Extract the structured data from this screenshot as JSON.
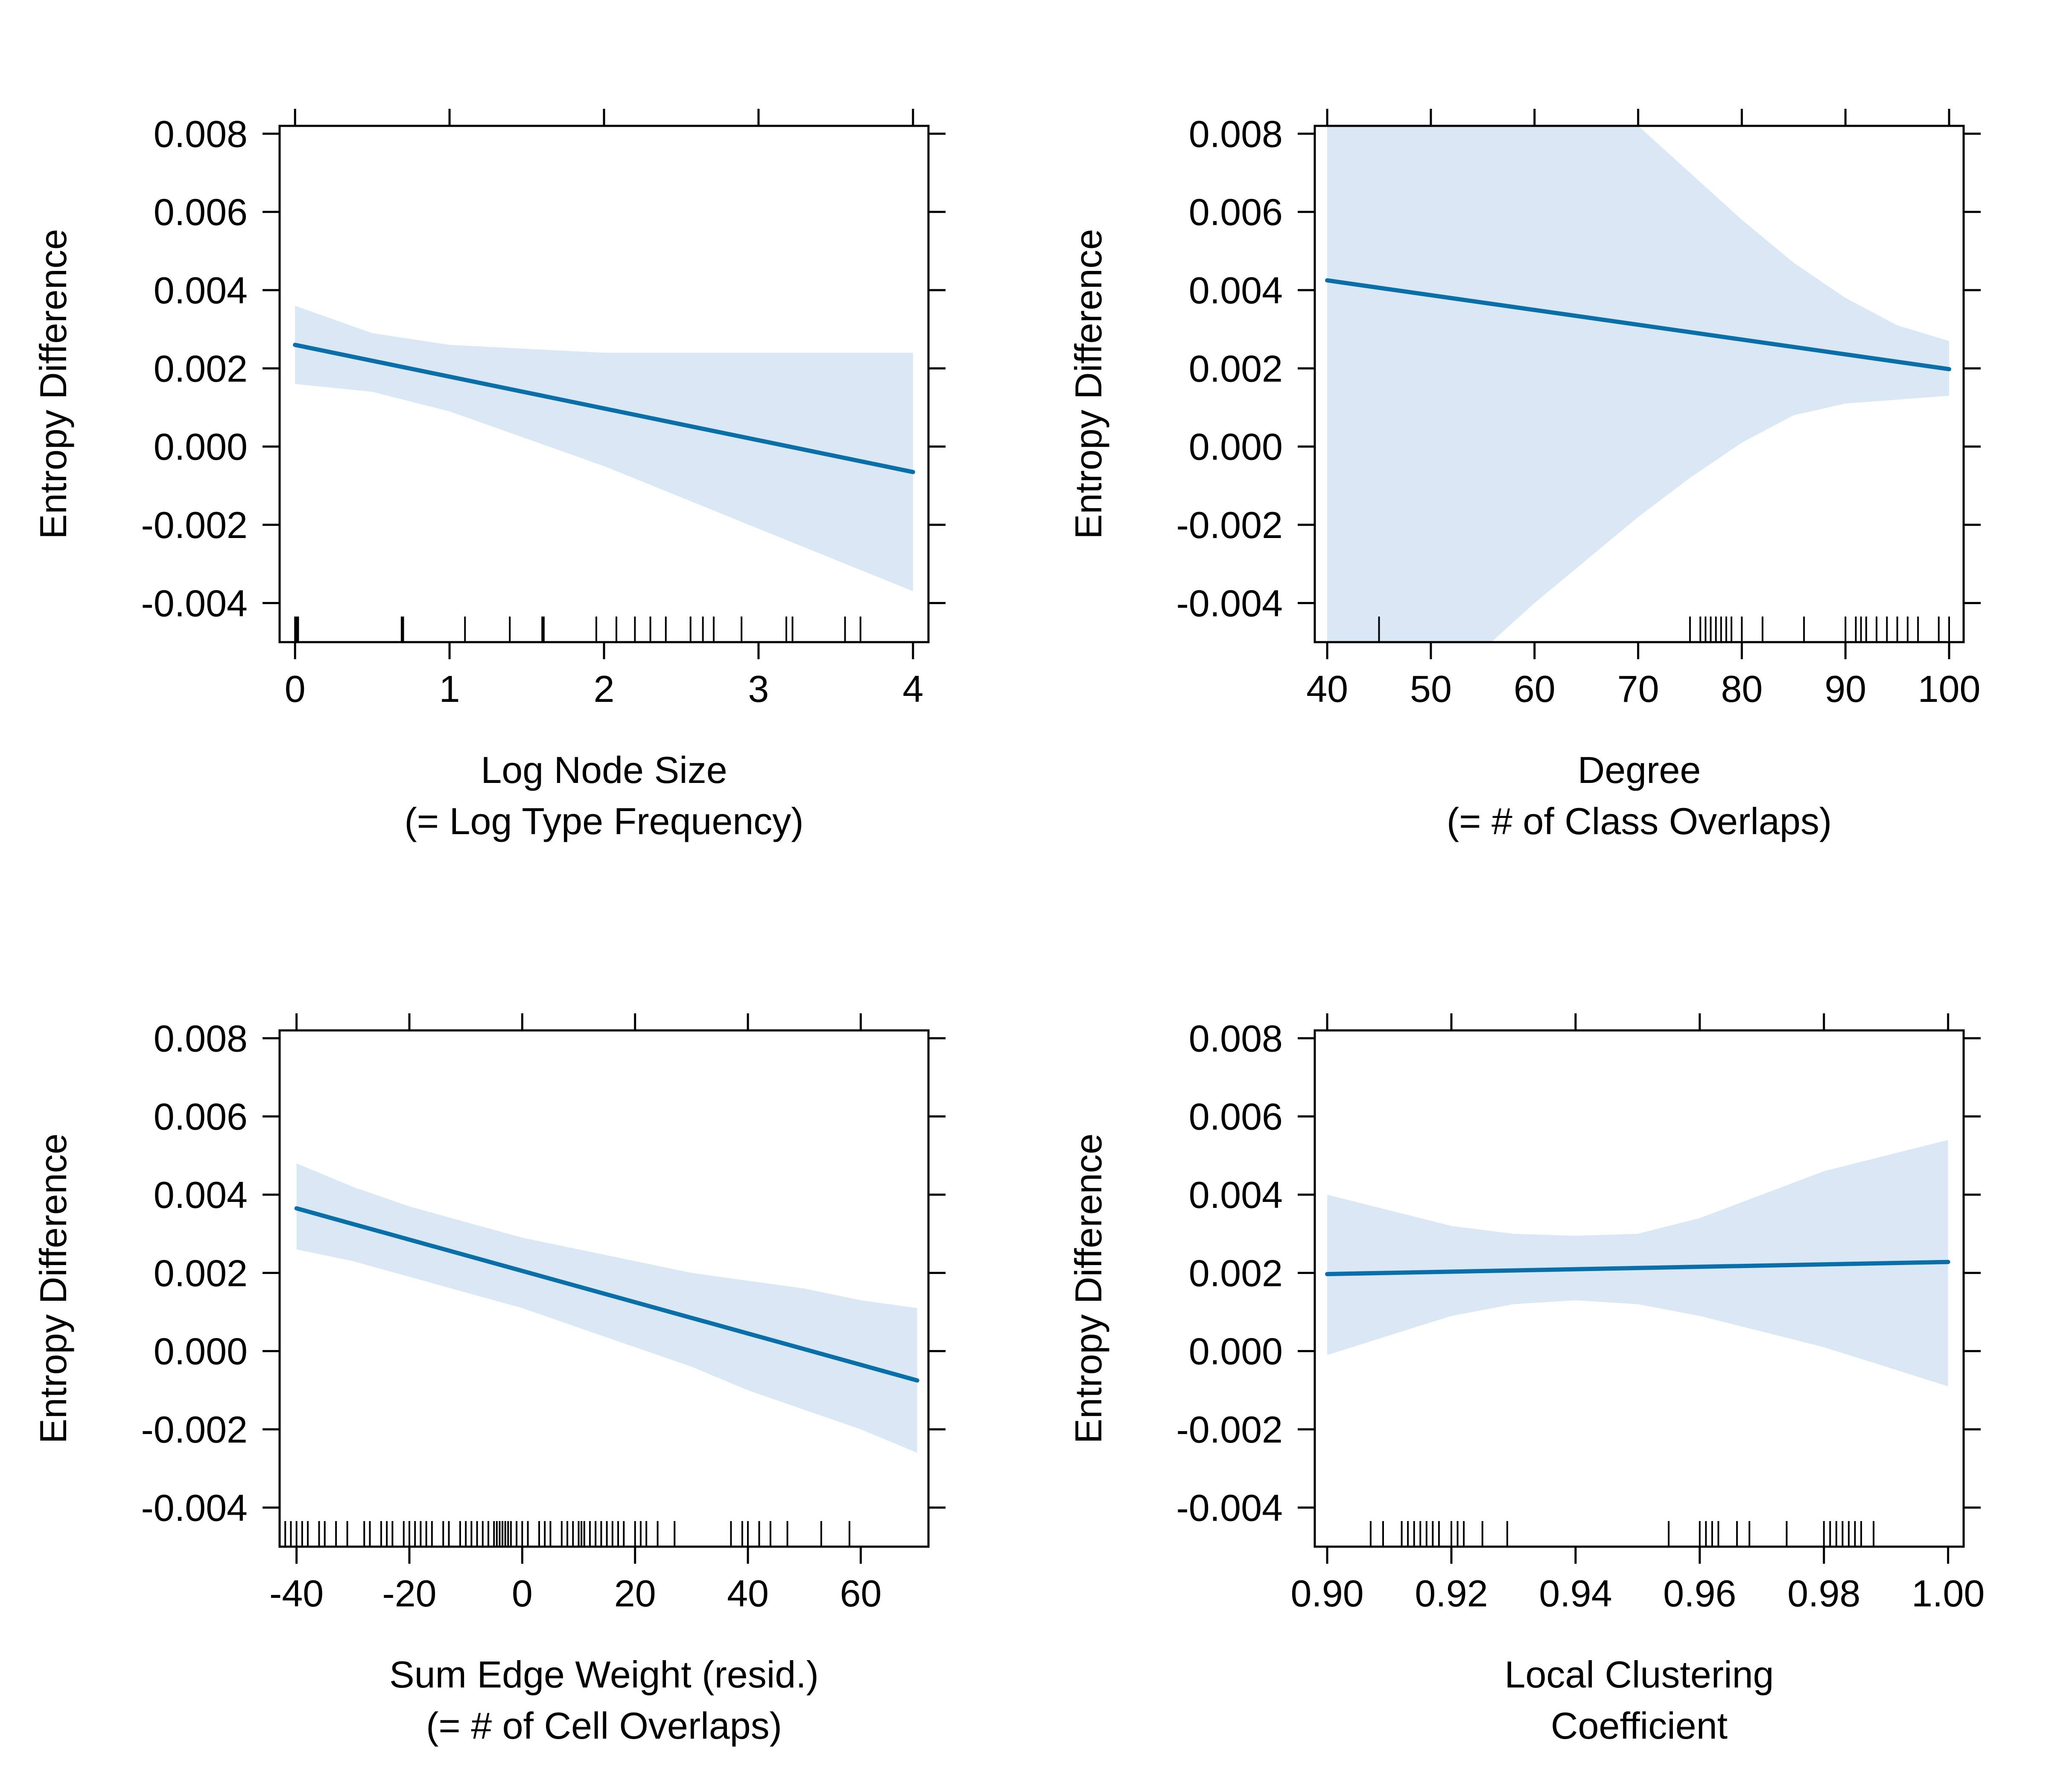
{
  "figure": {
    "band_color": "#d9e8f4",
    "line_color": "#0a6ea8",
    "axis_color": "#000000"
  },
  "chart_data": [
    {
      "type": "line",
      "ylabel": "Entropy Difference",
      "xlabel": [
        "Log Node Size",
        "(= Log Type Frequency)"
      ],
      "xlim": [
        -0.1,
        4.1
      ],
      "ylim": [
        -0.005,
        0.0082
      ],
      "xticks": [
        0,
        1,
        2,
        3,
        4
      ],
      "xtick_labels": [
        "0",
        "1",
        "2",
        "3",
        "4"
      ],
      "yticks": [
        -0.004,
        -0.002,
        0.0,
        0.002,
        0.004,
        0.006,
        0.008
      ],
      "ytick_labels": [
        "-0.004",
        "-0.002",
        "0.000",
        "0.002",
        "0.004",
        "0.006",
        "0.008"
      ],
      "grid": false,
      "series": [
        {
          "x": [
            0,
            4
          ],
          "y": [
            0.0026,
            -0.00065
          ],
          "band": {
            "x": [
              0,
              0.5,
              1,
              1.5,
              2,
              2.5,
              3,
              3.5,
              4
            ],
            "lower": [
              0.0016,
              0.0014,
              0.0009,
              0.0002,
              -0.0005,
              -0.0013,
              -0.0021,
              -0.0029,
              -0.0037
            ],
            "upper": [
              0.0036,
              0.0029,
              0.0026,
              0.0025,
              0.0024,
              0.0024,
              0.0024,
              0.0024,
              0.0024
            ]
          }
        }
      ],
      "rug": [
        0,
        0.01,
        0.02,
        0.69,
        0.7,
        1.1,
        1.39,
        1.6,
        1.61,
        1.95,
        2.08,
        2.2,
        2.3,
        2.4,
        2.56,
        2.64,
        2.71,
        2.89,
        3.18,
        3.22,
        3.56,
        3.66
      ]
    },
    {
      "type": "line",
      "ylabel": "Entropy Difference",
      "xlabel": [
        "Degree",
        "(= # of Class Overlaps)"
      ],
      "xlim": [
        38.8,
        101.4
      ],
      "ylim": [
        -0.005,
        0.0082
      ],
      "xticks": [
        40,
        50,
        60,
        70,
        80,
        90,
        100
      ],
      "xtick_labels": [
        "40",
        "50",
        "60",
        "70",
        "80",
        "90",
        "100"
      ],
      "yticks": [
        -0.004,
        -0.002,
        0.0,
        0.002,
        0.004,
        0.006,
        0.008
      ],
      "ytick_labels": [
        "-0.004",
        "-0.002",
        "0.000",
        "0.002",
        "0.004",
        "0.006",
        "0.008"
      ],
      "grid": false,
      "series": [
        {
          "x": [
            40,
            100
          ],
          "y": [
            0.00425,
            0.00198
          ],
          "band": {
            "x": [
              40,
              45,
              50,
              55,
              60,
              65,
              70,
              75,
              80,
              85,
              90,
              95,
              100
            ],
            "lower": [
              -0.0105,
              -0.0085,
              -0.0065,
              -0.0052,
              -0.004,
              -0.0029,
              -0.0018,
              -0.0008,
              0.0001,
              0.0008,
              0.0011,
              0.0012,
              0.0013
            ],
            "upper": [
              0.019,
              0.017,
              0.0145,
              0.0125,
              0.011,
              0.0095,
              0.0082,
              0.007,
              0.0058,
              0.0047,
              0.0038,
              0.0031,
              0.0027
            ]
          }
        }
      ],
      "rug": [
        45,
        75,
        76,
        76.5,
        77,
        77.5,
        78,
        78.5,
        79,
        80,
        82,
        86,
        90,
        91,
        91.5,
        92,
        93,
        94,
        95,
        96,
        97,
        99,
        100
      ]
    },
    {
      "type": "line",
      "ylabel": "Entropy Difference",
      "xlabel": [
        "Sum Edge Weight (resid.)",
        "(= # of Cell Overlaps)"
      ],
      "xlim": [
        -43,
        72
      ],
      "ylim": [
        -0.005,
        0.0082
      ],
      "xticks": [
        -40,
        -20,
        0,
        20,
        40,
        60
      ],
      "xtick_labels": [
        "-40",
        "-20",
        "0",
        "20",
        "40",
        "60"
      ],
      "yticks": [
        -0.004,
        -0.002,
        0.0,
        0.002,
        0.004,
        0.006,
        0.008
      ],
      "ytick_labels": [
        "-0.004",
        "-0.002",
        "0.000",
        "0.002",
        "0.004",
        "0.006",
        "0.008"
      ],
      "grid": false,
      "series": [
        {
          "x": [
            -40,
            70
          ],
          "y": [
            0.00365,
            -0.00075
          ],
          "band": {
            "x": [
              -40,
              -30,
              -20,
              -10,
              0,
              10,
              20,
              30,
              40,
              50,
              60,
              70
            ],
            "lower": [
              0.0026,
              0.0023,
              0.0019,
              0.0015,
              0.0011,
              0.0006,
              0.0001,
              -0.0004,
              -0.001,
              -0.0015,
              -0.002,
              -0.0026
            ],
            "upper": [
              0.0048,
              0.0042,
              0.0037,
              0.0033,
              0.0029,
              0.0026,
              0.0023,
              0.002,
              0.0018,
              0.0016,
              0.0013,
              0.0011
            ]
          }
        }
      ],
      "rug": [
        -42,
        -41,
        -40,
        -39,
        -38,
        -36,
        -35,
        -33,
        -31,
        -28,
        -27,
        -25,
        -24,
        -23,
        -21,
        -20,
        -19,
        -18,
        -17,
        -16,
        -14,
        -13,
        -11,
        -10,
        -9,
        -8,
        -7,
        -6,
        -5,
        -4.5,
        -4,
        -3.5,
        -3,
        -2.5,
        -2,
        -1,
        0,
        1,
        3,
        4,
        5,
        7,
        8,
        9,
        10,
        10.5,
        11,
        12,
        13,
        14,
        15,
        16,
        17,
        18,
        20,
        21,
        22,
        24,
        27,
        37,
        39,
        40,
        42,
        44,
        47,
        53,
        58
      ]
    },
    {
      "type": "line",
      "ylabel": "Entropy Difference",
      "xlabel": [
        "Local Clustering",
        "Coefficient"
      ],
      "xlim": [
        0.898,
        1.0025
      ],
      "ylim": [
        -0.005,
        0.0082
      ],
      "xticks": [
        0.9,
        0.92,
        0.94,
        0.96,
        0.98,
        1.0
      ],
      "xtick_labels": [
        "0.90",
        "0.92",
        "0.94",
        "0.96",
        "0.98",
        "1.00"
      ],
      "yticks": [
        -0.004,
        -0.002,
        0.0,
        0.002,
        0.004,
        0.006,
        0.008
      ],
      "ytick_labels": [
        "-0.004",
        "-0.002",
        "0.000",
        "0.002",
        "0.004",
        "0.006",
        "0.008"
      ],
      "grid": false,
      "series": [
        {
          "x": [
            0.9,
            1.0
          ],
          "y": [
            0.00197,
            0.00228
          ],
          "band": {
            "x": [
              0.9,
              0.91,
              0.92,
              0.93,
              0.94,
              0.95,
              0.96,
              0.97,
              0.98,
              0.99,
              1.0
            ],
            "lower": [
              -0.0001,
              0.0004,
              0.0009,
              0.0012,
              0.0013,
              0.0012,
              0.0009,
              0.0005,
              0.0001,
              -0.0004,
              -0.0009
            ],
            "upper": [
              0.004,
              0.0036,
              0.0032,
              0.003,
              0.00295,
              0.003,
              0.0034,
              0.004,
              0.0046,
              0.005,
              0.0054
            ]
          }
        }
      ],
      "rug": [
        0.907,
        0.909,
        0.912,
        0.913,
        0.914,
        0.915,
        0.916,
        0.917,
        0.918,
        0.92,
        0.921,
        0.922,
        0.925,
        0.929,
        0.955,
        0.96,
        0.961,
        0.962,
        0.963,
        0.966,
        0.968,
        0.974,
        0.98,
        0.981,
        0.982,
        0.983,
        0.984,
        0.985,
        0.986,
        0.988
      ]
    }
  ]
}
